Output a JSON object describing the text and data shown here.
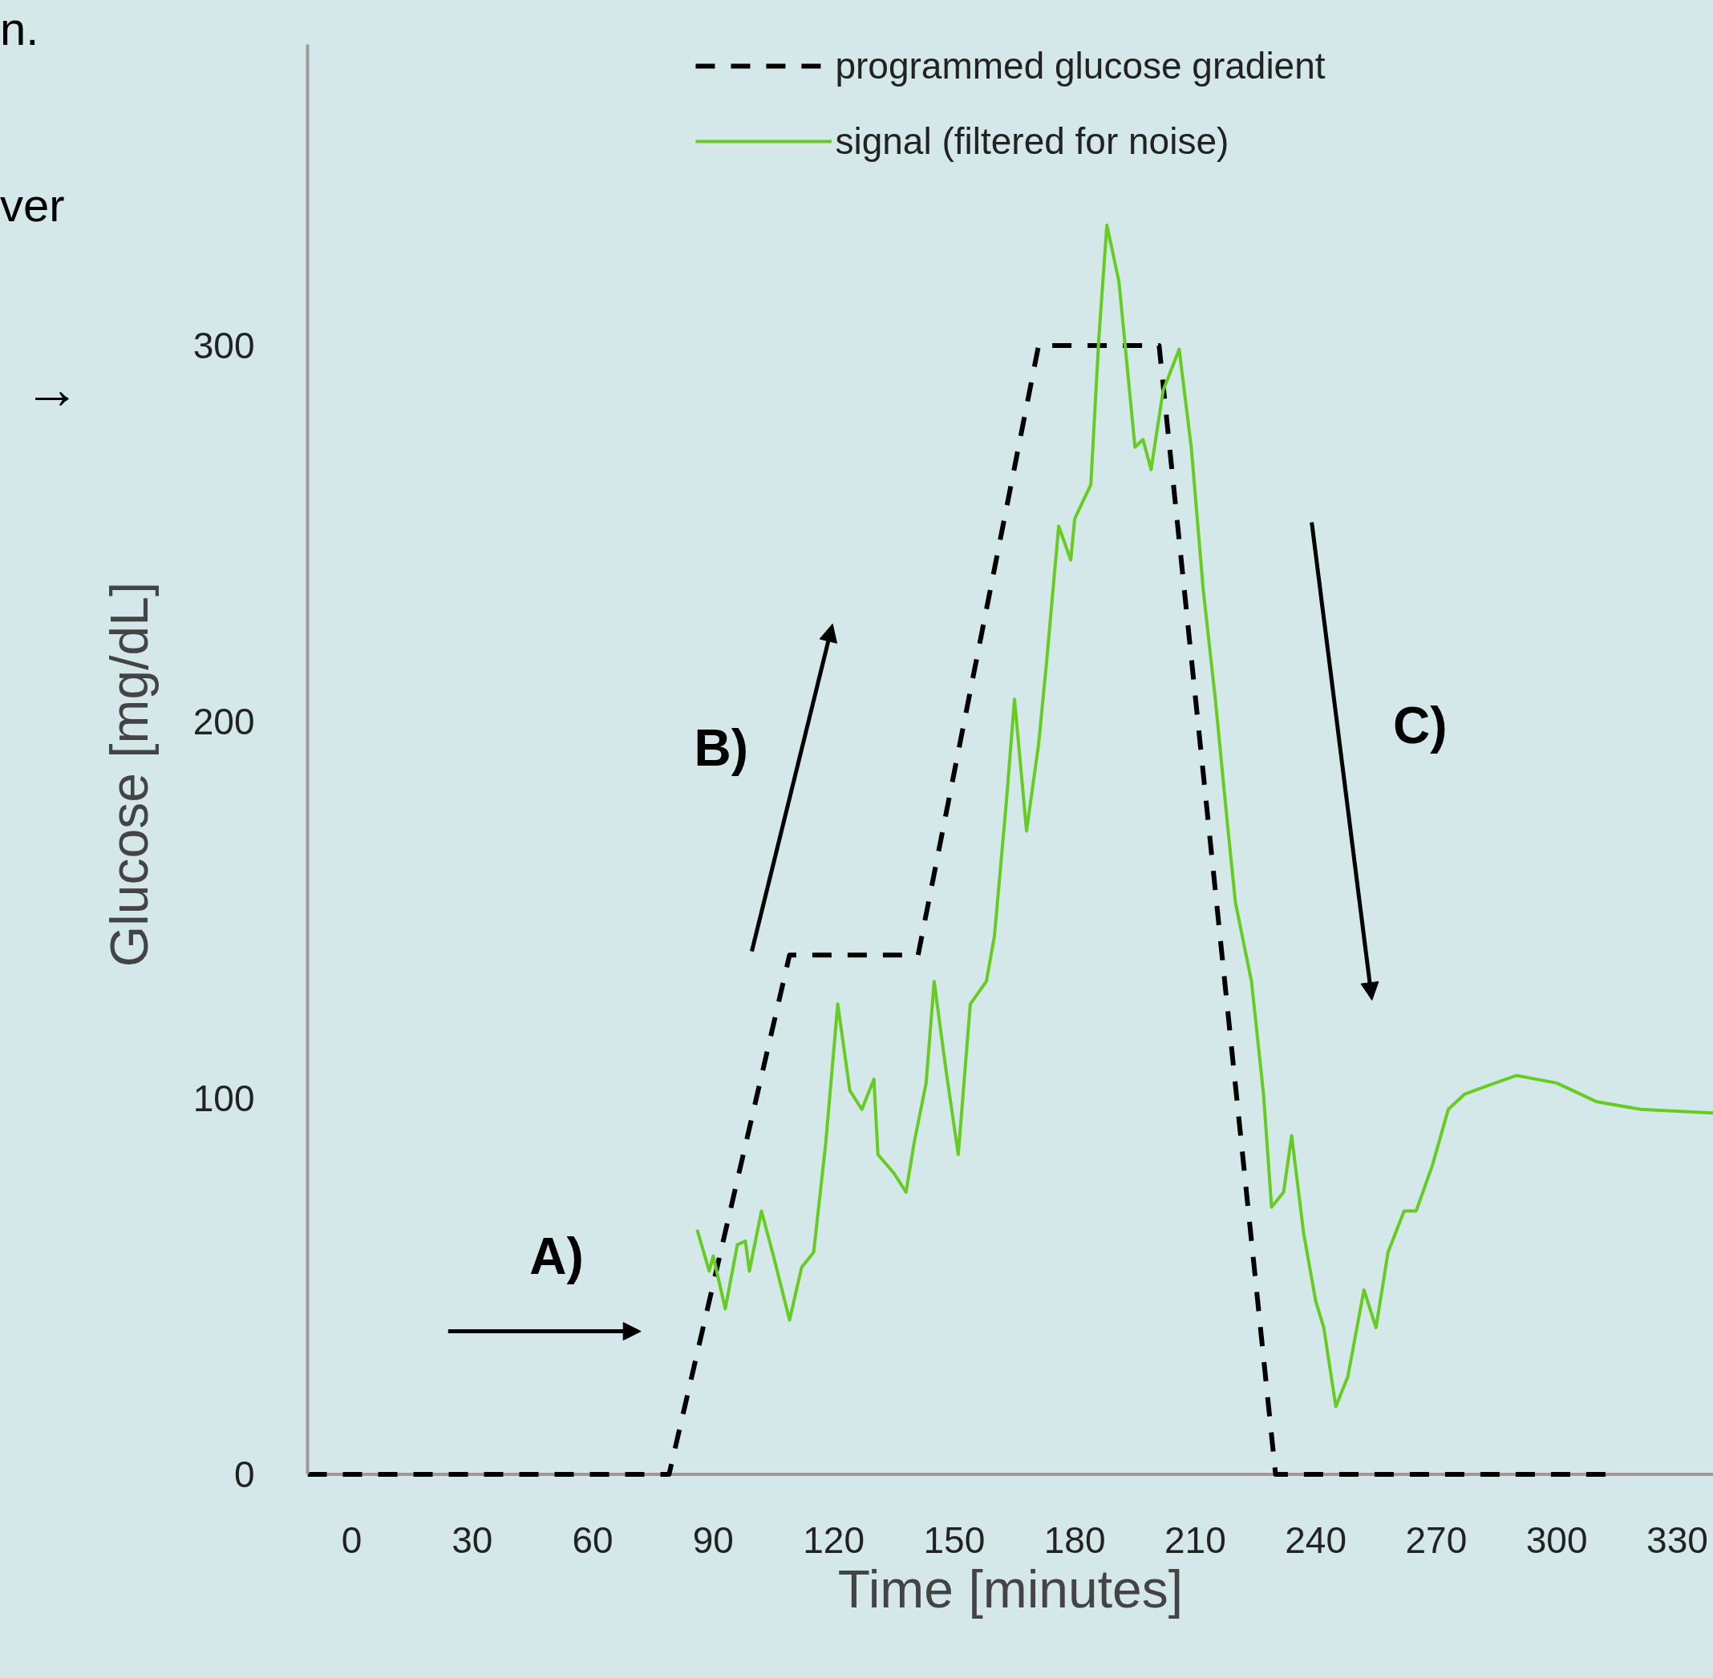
{
  "chart_data": {
    "type": "line",
    "xlabel": "Time [minutes]",
    "ylabel": "Glucose [mg/dL]",
    "xlim": [
      -11,
      339
    ],
    "ylim": [
      0,
      380
    ],
    "xticks": [
      0,
      30,
      60,
      90,
      120,
      150,
      180,
      210,
      240,
      270,
      300,
      330
    ],
    "yticks": [
      0,
      100,
      200,
      300
    ],
    "grid": false,
    "legend": "top",
    "marker": "none",
    "annotations": [
      "n.",
      "ver",
      "→",
      "A)",
      "B)",
      "C)"
    ],
    "series": [
      {
        "name": "programmed glucose gradient",
        "color": "#000000",
        "line_style": "dashed",
        "x": [
          -11,
          72,
          79,
          109,
          141,
          171,
          201,
          230,
          313
        ],
        "values": [
          0,
          0,
          0,
          138,
          138,
          300,
          300,
          0,
          0
        ]
      },
      {
        "name": "signal (filtered for noise)",
        "color": "#66cc22",
        "line_style": "solid",
        "x": [
          86,
          89,
          90,
          93,
          96,
          98,
          99,
          102,
          105,
          109,
          112,
          115,
          118,
          121,
          124,
          127,
          130,
          131,
          135,
          138,
          140,
          143,
          145,
          148,
          151,
          154,
          158,
          160,
          163,
          165,
          168,
          171,
          173,
          176,
          179,
          180,
          184,
          186,
          188,
          191,
          193,
          195,
          197,
          199,
          202,
          206,
          209,
          212,
          215,
          218,
          220,
          224,
          227,
          229,
          232,
          234,
          237,
          240,
          242,
          245,
          248,
          252,
          255,
          258,
          262,
          265,
          269,
          273,
          277,
          282,
          290,
          300,
          310,
          321,
          339
        ],
        "values": [
          65,
          54,
          58,
          44,
          61,
          62,
          54,
          70,
          58,
          41,
          55,
          59,
          88,
          125,
          102,
          97,
          105,
          85,
          80,
          75,
          88,
          104,
          131,
          107,
          85,
          125,
          131,
          143,
          179,
          206,
          171,
          194,
          216,
          252,
          243,
          254,
          263,
          302,
          332,
          317,
          295,
          273,
          275,
          267,
          288,
          299,
          273,
          235,
          206,
          173,
          152,
          131,
          101,
          71,
          75,
          90,
          64,
          46,
          39,
          18,
          26,
          49,
          39,
          59,
          70,
          70,
          82,
          97,
          101,
          103,
          106,
          104,
          99,
          97,
          96
        ]
      }
    ]
  }
}
